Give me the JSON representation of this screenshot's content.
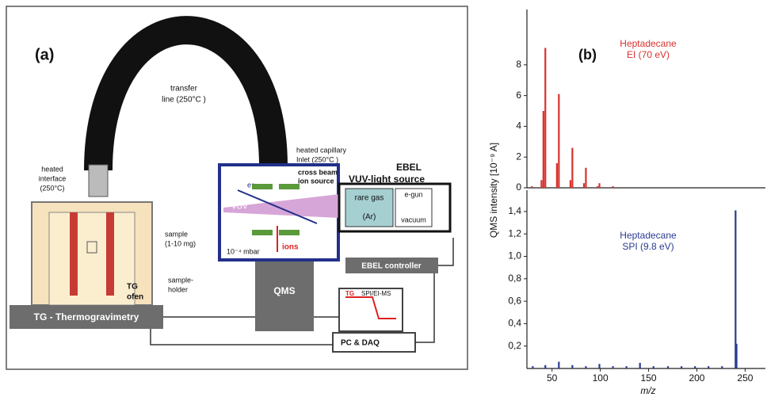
{
  "diagram": {
    "panel_label": "(a)",
    "transfer_line": [
      "transfer",
      "line (250°C )"
    ],
    "heated_interface": [
      "heated",
      "interface",
      "(250°C)"
    ],
    "heated_capillary": [
      "heated capillary",
      "Inlet (250°C )"
    ],
    "cross_beam": [
      "cross beam",
      "ion source"
    ],
    "ebel": "EBEL",
    "vuv_light_source": "VUV-light source",
    "rare_gas": "rare gas",
    "argon": "(Ar)",
    "e_gun": "e-gun",
    "vacuum": "vacuum",
    "vuv": "VUV",
    "electron": "e⁻",
    "pressure": "10⁻⁴ mbar",
    "ions": "ions",
    "sample": [
      "sample",
      "(1-10 mg)"
    ],
    "sample_holder": [
      "sample-",
      "holder"
    ],
    "tg_ofen": [
      "TG",
      "ofen"
    ],
    "qms": "QMS",
    "ebel_controller": "EBEL controller",
    "thermogravimetry": "TG - Thermogravimetry",
    "pc_daq": "PC & DAQ",
    "screen_tg": "TG",
    "screen_ms": "SPI/EI-MS"
  },
  "chart_data": [
    {
      "type": "bar",
      "panel_label": "(b)",
      "annotation": [
        "Heptadecane",
        "EI (70 eV)"
      ],
      "color": "#d8312c",
      "x": [
        29,
        39,
        41,
        43,
        55,
        57,
        69,
        71,
        83,
        85,
        97,
        99,
        113
      ],
      "values": [
        0.1,
        0.5,
        5.0,
        9.1,
        1.6,
        6.1,
        0.5,
        2.6,
        0.3,
        1.3,
        0.1,
        0.3,
        0.1
      ],
      "xlim": [
        24,
        271
      ],
      "ylim": [
        0,
        11.6
      ],
      "yticks": [
        0,
        2,
        4,
        6,
        8
      ]
    },
    {
      "type": "bar",
      "annotation": [
        "Heptadecane",
        "SPI (9.8 eV)"
      ],
      "color": "#2a3b92",
      "x": [
        30,
        43,
        57,
        71,
        85,
        99,
        113,
        127,
        141,
        155,
        170,
        184,
        198,
        212,
        226,
        240,
        241
      ],
      "values": [
        0.02,
        0.03,
        0.06,
        0.03,
        0.02,
        0.04,
        0.02,
        0.02,
        0.05,
        0.02,
        0.02,
        0.02,
        0.02,
        0.02,
        0.02,
        1.41,
        0.22
      ],
      "xlim": [
        24,
        271
      ],
      "ylim": [
        0,
        1.59
      ],
      "xticks": [
        50,
        100,
        150,
        200,
        250
      ],
      "yticks": [
        {
          "value": 0.2,
          "label": "0,2"
        },
        {
          "value": 0.4,
          "label": "0,4"
        },
        {
          "value": 0.6,
          "label": "0,6"
        },
        {
          "value": 0.8,
          "label": "0,8"
        },
        {
          "value": 1.0,
          "label": "1,0"
        },
        {
          "value": 1.2,
          "label": "1,2"
        },
        {
          "value": 1.4,
          "label": "1,4"
        }
      ],
      "xlabel": "m/z",
      "ylabel": "QMS intensity [10⁻⁹ A]"
    }
  ]
}
